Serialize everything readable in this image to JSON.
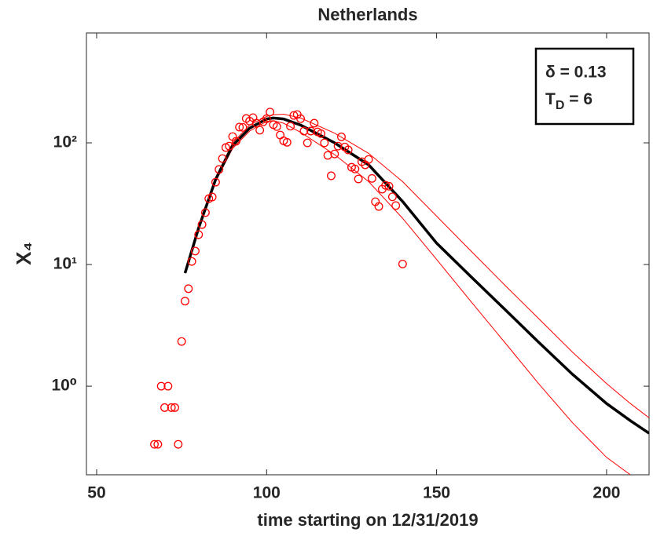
{
  "chart_data": {
    "type": "scatter",
    "title": "Netherlands",
    "xlabel": "time starting on 12/31/2019",
    "ylabel": "X₄",
    "annotations": [
      "δ = 0.13",
      {
        "base": "T",
        "sub": "D",
        "rest": " = 6"
      }
    ],
    "ylog": true,
    "xlim": [
      47,
      212.5
    ],
    "xticks": [
      50,
      100,
      150,
      200
    ],
    "ylim": [
      0.187,
      800
    ],
    "yticks": [
      {
        "value": 1,
        "label": "10⁰"
      },
      {
        "value": 10,
        "label": "10¹"
      },
      {
        "value": 100,
        "label": "10²"
      }
    ],
    "color": "#ff0000",
    "x": [
      67,
      68,
      69,
      70,
      71,
      72,
      73,
      74,
      75,
      76,
      77,
      78,
      79,
      80,
      81,
      82,
      83,
      84,
      85,
      86,
      87,
      88,
      89,
      90,
      91,
      92,
      93,
      94,
      95,
      96,
      97,
      98,
      99,
      100,
      101,
      102,
      103,
      104,
      105,
      106,
      107,
      108,
      109,
      110,
      111,
      112,
      113,
      114,
      115,
      116,
      117,
      118,
      119,
      120,
      121,
      122,
      123,
      124,
      125,
      126,
      127,
      128,
      129,
      130,
      131,
      132,
      133,
      134,
      135,
      136,
      137,
      138,
      140
    ],
    "values": [
      0.333,
      0.333,
      1,
      0.667,
      1,
      0.667,
      0.667,
      0.333,
      2.33,
      5,
      6.33,
      10.6,
      12.9,
      17.6,
      21.3,
      26.7,
      34.8,
      35.9,
      47.5,
      60.4,
      74.3,
      91.5,
      94,
      112.6,
      103,
      134.7,
      134,
      158.5,
      151,
      161,
      145,
      127,
      149,
      158,
      179,
      141,
      136,
      116,
      104,
      101,
      137,
      168,
      171,
      158,
      125,
      100,
      125,
      145,
      123,
      119,
      100,
      78.9,
      53.6,
      81,
      94,
      112,
      92.5,
      87.5,
      63,
      61,
      50.5,
      70,
      66,
      73,
      51,
      32.8,
      30,
      41.6,
      44.8,
      44,
      36,
      30.5,
      10.1
    ],
    "curve_x": [
      76,
      80,
      85,
      90,
      95,
      100,
      102,
      105,
      110,
      120,
      130,
      140,
      150,
      160,
      170,
      180,
      190,
      200,
      207,
      212.5
    ],
    "curves": [
      {
        "color": "#ff0000",
        "values": [
          8.5,
          20,
          52,
          100,
          140,
          165,
          170,
          172,
          160,
          120,
          82,
          48,
          25,
          13,
          6.8,
          3.6,
          1.9,
          1.05,
          0.72,
          0.55
        ]
      },
      {
        "color": "#ff0000",
        "values": [
          8.5,
          20,
          48,
          90,
          125,
          150,
          152,
          145,
          122,
          80,
          48,
          24,
          11,
          5,
          2.3,
          1.05,
          0.5,
          0.26,
          0.187,
          null
        ]
      },
      {
        "color": "#000000",
        "values": [
          8.5,
          20,
          50,
          95,
          132,
          157,
          160,
          157,
          140,
          100,
          66,
          33,
          15,
          8,
          4.3,
          2.3,
          1.25,
          0.72,
          0.52,
          0.41
        ]
      }
    ]
  }
}
